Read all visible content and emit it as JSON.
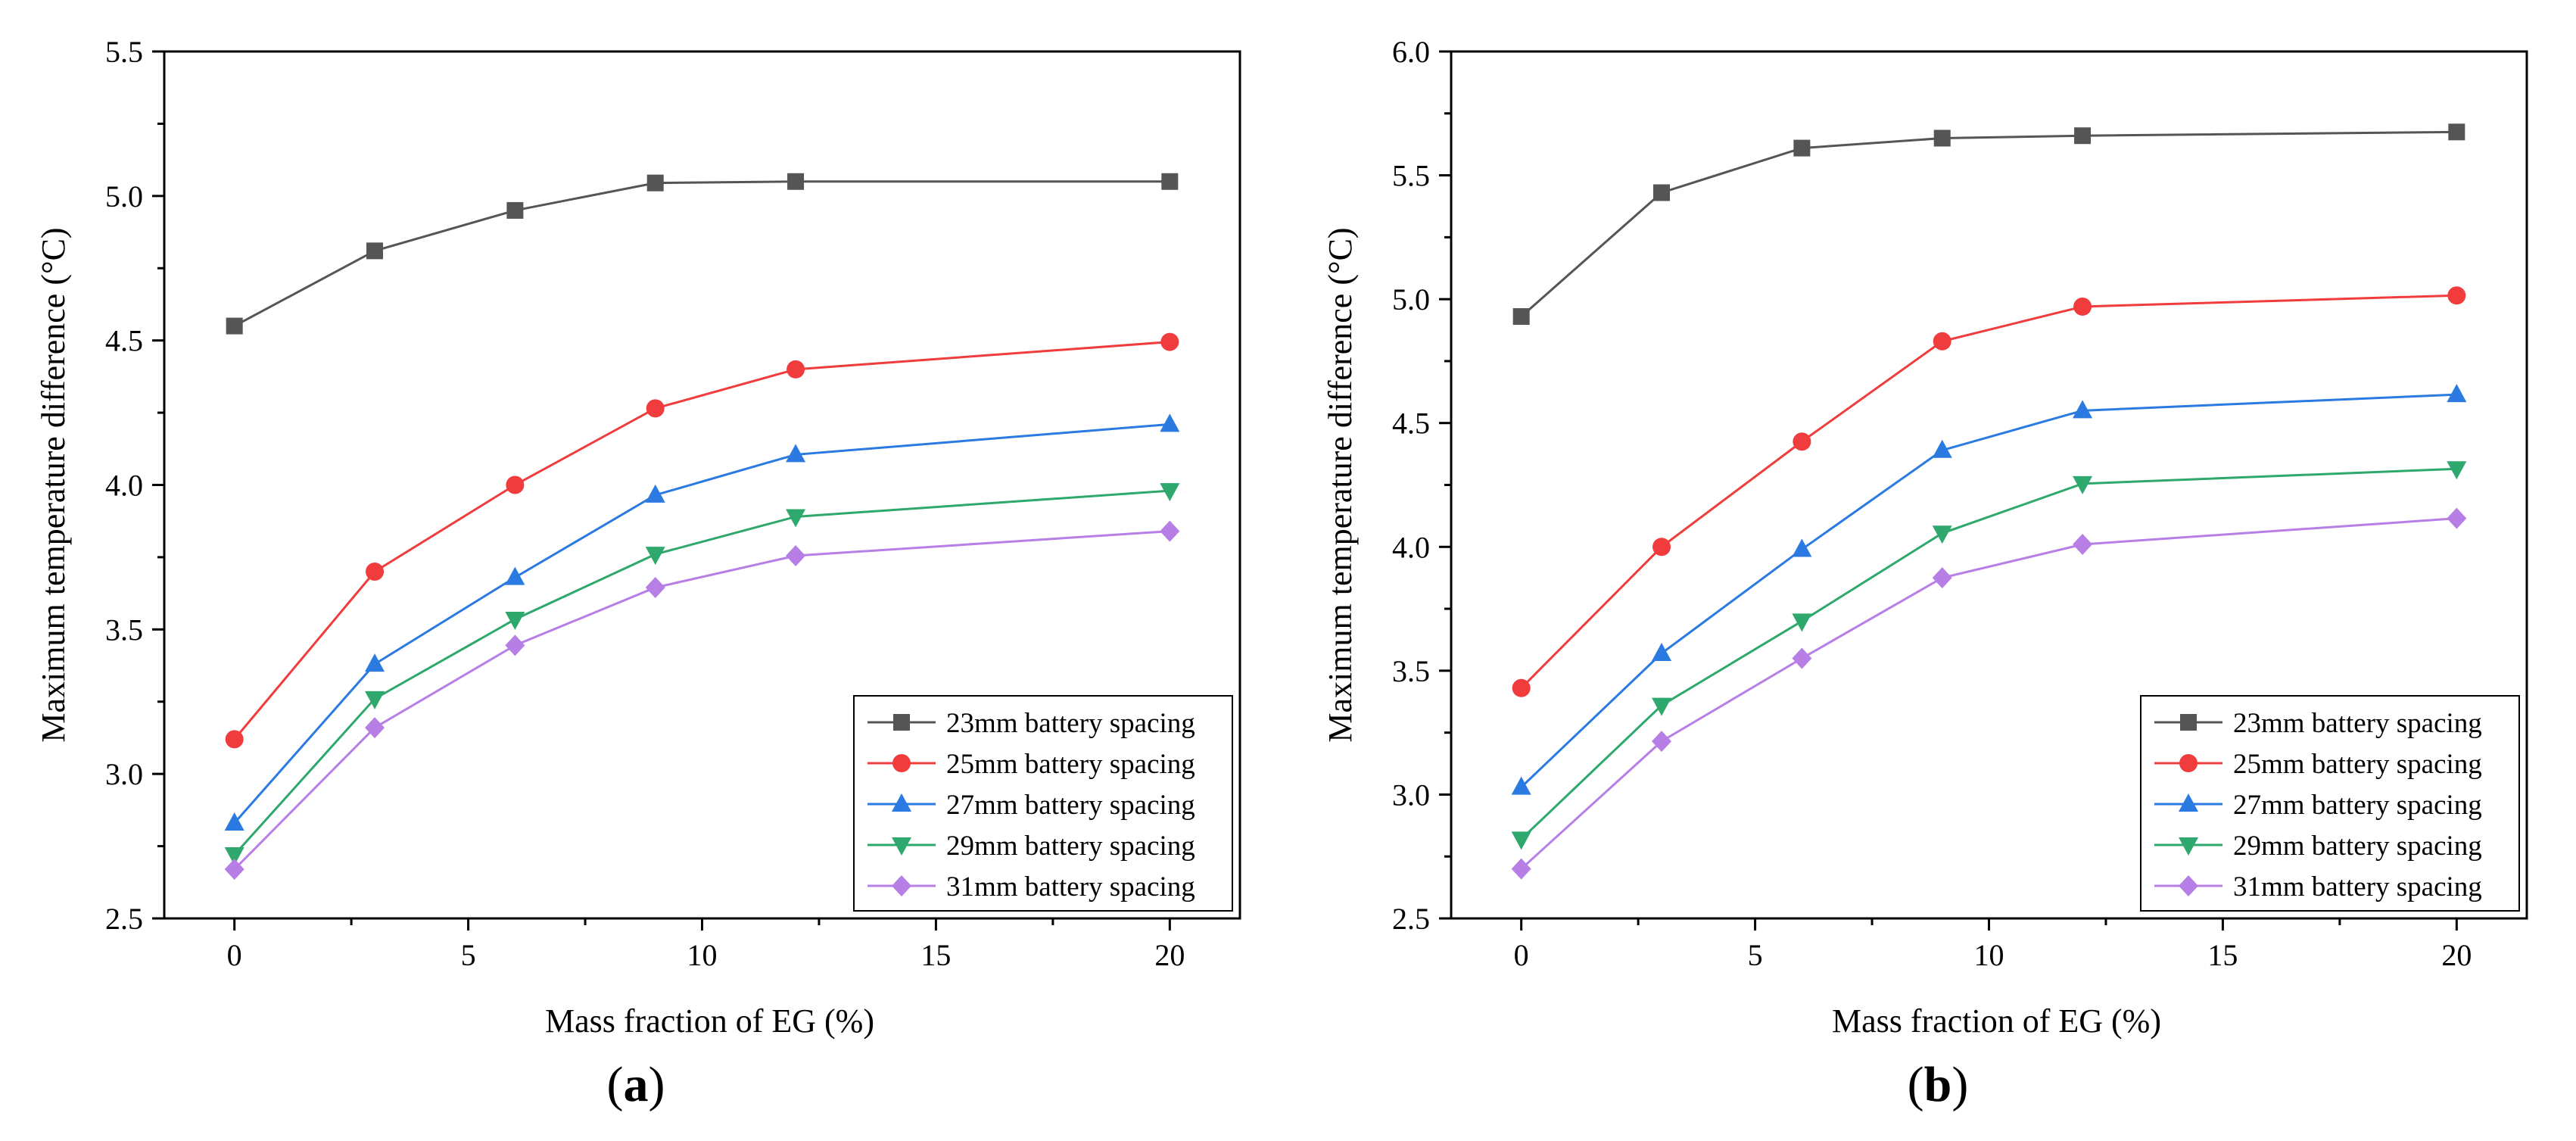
{
  "chart_data": [
    {
      "type": "line",
      "panel_label": "a",
      "xlabel": "Mass fraction of EG (%)",
      "ylabel": "Maximum temperature difference (°C)",
      "xlim": [
        -1.5,
        21.5
      ],
      "ylim": [
        2.5,
        5.5
      ],
      "x_ticks": [
        "0",
        "5",
        "10",
        "15",
        "20"
      ],
      "y_ticks": [
        "2.5",
        "3.0",
        "3.5",
        "4.0",
        "4.5",
        "5.0",
        "5.5"
      ],
      "legend_position": "bottom-right",
      "x": [
        0,
        3,
        6,
        9,
        12,
        20
      ],
      "series": [
        {
          "name": "23mm battery spacing",
          "color": "#555555",
          "marker": "square",
          "values": [
            4.55,
            4.81,
            4.95,
            5.045,
            5.05,
            5.05
          ]
        },
        {
          "name": "25mm battery spacing",
          "color": "#f03c3c",
          "marker": "circle",
          "values": [
            3.12,
            3.7,
            4.0,
            4.265,
            4.4,
            4.495
          ]
        },
        {
          "name": "27mm battery spacing",
          "color": "#2a7ae2",
          "marker": "triangle-up",
          "values": [
            2.83,
            3.38,
            3.68,
            3.965,
            4.105,
            4.21
          ]
        },
        {
          "name": "29mm battery spacing",
          "color": "#2ea86c",
          "marker": "triangle-down",
          "values": [
            2.72,
            3.26,
            3.535,
            3.76,
            3.89,
            3.98
          ]
        },
        {
          "name": "31mm battery spacing",
          "color": "#b77fe6",
          "marker": "diamond",
          "values": [
            2.67,
            3.16,
            3.445,
            3.645,
            3.755,
            3.84
          ]
        }
      ]
    },
    {
      "type": "line",
      "panel_label": "b",
      "xlabel": "Mass fraction of EG (%)",
      "ylabel": "Maximum temperature difference (°C)",
      "xlim": [
        -1.5,
        21.5
      ],
      "ylim": [
        2.5,
        6.0
      ],
      "x_ticks": [
        "0",
        "5",
        "10",
        "15",
        "20"
      ],
      "y_ticks": [
        "2.5",
        "3.0",
        "3.5",
        "4.0",
        "4.5",
        "5.0",
        "5.5",
        "6.0"
      ],
      "legend_position": "bottom-right",
      "x": [
        0,
        3,
        6,
        9,
        12,
        20
      ],
      "series": [
        {
          "name": "23mm battery spacing",
          "color": "#555555",
          "marker": "square",
          "values": [
            4.93,
            5.43,
            5.61,
            5.65,
            5.66,
            5.675
          ]
        },
        {
          "name": "25mm battery spacing",
          "color": "#f03c3c",
          "marker": "circle",
          "values": [
            3.43,
            4.0,
            4.425,
            4.83,
            4.97,
            5.015
          ]
        },
        {
          "name": "27mm battery spacing",
          "color": "#2a7ae2",
          "marker": "triangle-up",
          "values": [
            3.03,
            3.57,
            3.99,
            4.39,
            4.55,
            4.615
          ]
        },
        {
          "name": "29mm battery spacing",
          "color": "#2ea86c",
          "marker": "triangle-down",
          "values": [
            2.82,
            3.36,
            3.7,
            4.055,
            4.255,
            4.315
          ]
        },
        {
          "name": "31mm battery spacing",
          "color": "#b77fe6",
          "marker": "diamond",
          "values": [
            2.7,
            3.215,
            3.55,
            3.875,
            4.01,
            4.115
          ]
        }
      ]
    }
  ]
}
